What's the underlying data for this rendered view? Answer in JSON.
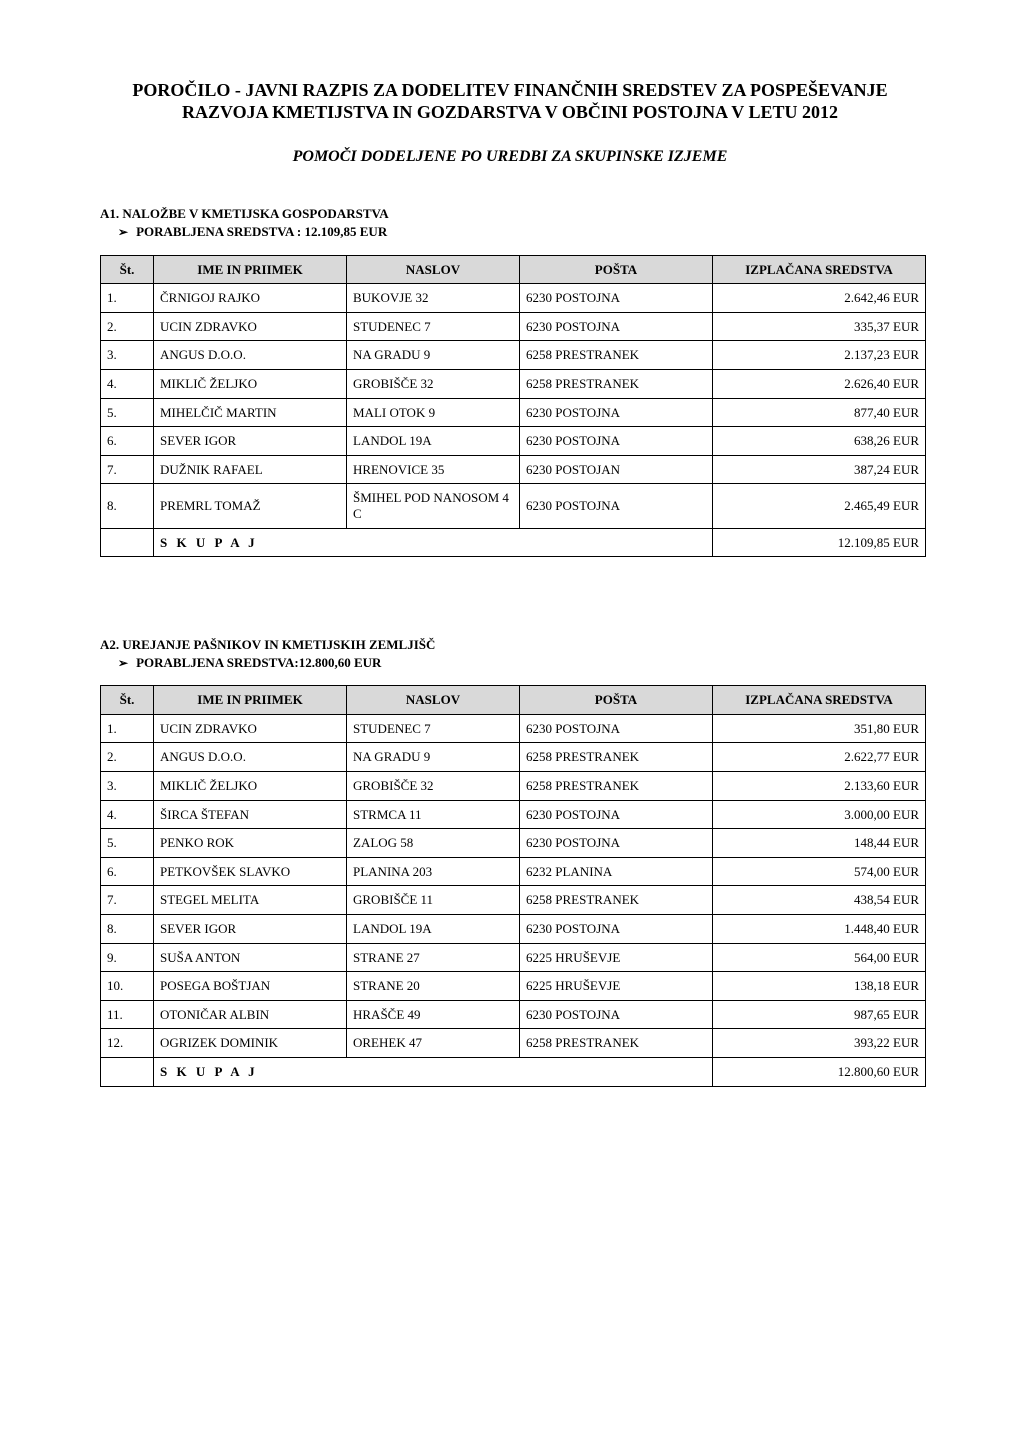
{
  "title": "POROČILO - JAVNI RAZPIS ZA DODELITEV FINANČNIH SREDSTEV ZA POSPEŠEVANJE RAZVOJA KMETIJSTVA IN GOZDARSTVA V OBČINI POSTOJNA V LETU 2012",
  "subtitle": "POMOČI DODELJENE PO UREDBI ZA SKUPINSKE IZJEME",
  "columns": {
    "st": "Št.",
    "name": "IME IN PRIIMEK",
    "addr": "NASLOV",
    "post": "POŠTA",
    "amount": "IZPLAČANA SREDSTVA"
  },
  "skupaj_label": "S K U P A J",
  "table_style": {
    "header_bg": "#d9d9d9",
    "border_color": "#000000",
    "font_size_pt": 10
  },
  "section_a1": {
    "heading": "A1. NALOŽBE V KMETIJSKA GOSPODARSTVA",
    "sub": "PORABLJENA SREDSTVA : 12.109,85 EUR",
    "rows": [
      {
        "n": "1.",
        "name": "ČRNIGOJ RAJKO",
        "addr": "BUKOVJE 32",
        "post": "6230 POSTOJNA",
        "amt": "2.642,46 EUR"
      },
      {
        "n": "2.",
        "name": "UCIN ZDRAVKO",
        "addr": "STUDENEC 7",
        "post": "6230 POSTOJNA",
        "amt": "335,37 EUR"
      },
      {
        "n": "3.",
        "name": "ANGUS D.O.O.",
        "addr": "NA GRADU 9",
        "post": "6258 PRESTRANEK",
        "amt": "2.137,23 EUR"
      },
      {
        "n": "4.",
        "name": "MIKLIČ ŽELJKO",
        "addr": "GROBIŠČE 32",
        "post": "6258 PRESTRANEK",
        "amt": "2.626,40 EUR"
      },
      {
        "n": "5.",
        "name": "MIHELČIČ  MARTIN",
        "addr": "MALI OTOK  9",
        "post": "6230 POSTOJNA",
        "amt": "877,40 EUR"
      },
      {
        "n": "6.",
        "name": "SEVER IGOR",
        "addr": "LANDOL 19A",
        "post": "6230 POSTOJNA",
        "amt": "638,26 EUR"
      },
      {
        "n": "7.",
        "name": "DUŽNIK RAFAEL",
        "addr": "HRENOVICE 35",
        "post": "6230 POSTOJAN",
        "amt": "387,24 EUR"
      },
      {
        "n": "8.",
        "name": "PREMRL TOMAŽ",
        "addr": "ŠMIHEL POD NANOSOM 4 C",
        "post": "6230 POSTOJNA",
        "amt": "2.465,49 EUR"
      }
    ],
    "total": "12.109,85 EUR"
  },
  "section_a2": {
    "heading": "A2. UREJANJE PAŠNIKOV IN KMETIJSKIH ZEMLJIŠČ",
    "sub": "PORABLJENA SREDSTVA:12.800,60 EUR",
    "rows": [
      {
        "n": "1.",
        "name": "UCIN ZDRAVKO",
        "addr": "STUDENEC 7",
        "post": "6230 POSTOJNA",
        "amt": "351,80 EUR"
      },
      {
        "n": "2.",
        "name": "ANGUS D.O.O.",
        "addr": "NA GRADU 9",
        "post": "6258 PRESTRANEK",
        "amt": "2.622,77 EUR"
      },
      {
        "n": "3.",
        "name": "MIKLIČ ŽELJKO",
        "addr": "GROBIŠČE 32",
        "post": "6258 PRESTRANEK",
        "amt": "2.133,60 EUR"
      },
      {
        "n": "4.",
        "name": "ŠIRCA ŠTEFAN",
        "addr": "STRMCA 11",
        "post": "6230 POSTOJNA",
        "amt": "3.000,00 EUR"
      },
      {
        "n": "5.",
        "name": "PENKO ROK",
        "addr": "ZALOG 58",
        "post": "6230 POSTOJNA",
        "amt": "148,44 EUR"
      },
      {
        "n": "6.",
        "name": "PETKOVŠEK SLAVKO",
        "addr": "PLANINA 203",
        "post": "6232 PLANINA",
        "amt": "574,00 EUR"
      },
      {
        "n": "7.",
        "name": "STEGEL MELITA",
        "addr": "GROBIŠČE 11",
        "post": "6258 PRESTRANEK",
        "amt": "438,54 EUR"
      },
      {
        "n": "8.",
        "name": "SEVER IGOR",
        "addr": "LANDOL 19A",
        "post": "6230 POSTOJNA",
        "amt": "1.448,40 EUR"
      },
      {
        "n": "9.",
        "name": "SUŠA ANTON",
        "addr": "STRANE 27",
        "post": "6225 HRUŠEVJE",
        "amt": "564,00 EUR"
      },
      {
        "n": "10.",
        "name": "POSEGA BOŠTJAN",
        "addr": "STRANE 20",
        "post": "6225 HRUŠEVJE",
        "amt": "138,18 EUR"
      },
      {
        "n": "11.",
        "name": "OTONIČAR ALBIN",
        "addr": "HRAŠČE 49",
        "post": "6230 POSTOJNA",
        "amt": "987,65 EUR"
      },
      {
        "n": "12.",
        "name": "OGRIZEK DOMINIK",
        "addr": "OREHEK 47",
        "post": "6258 PRESTRANEK",
        "amt": "393,22 EUR"
      }
    ],
    "total": "12.800,60 EUR"
  }
}
